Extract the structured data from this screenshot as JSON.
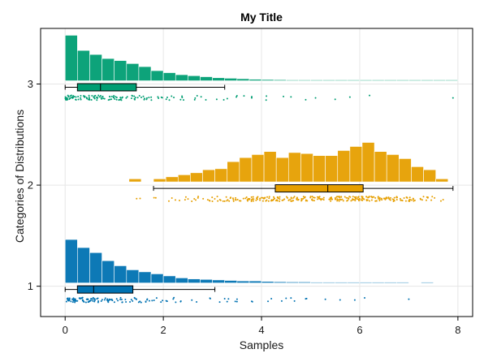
{
  "chart_data": {
    "type": "raincloud",
    "title": "My Title",
    "xlabel": "Samples",
    "ylabel": "Categories of Distributions",
    "xlim": [
      -0.5,
      8.3
    ],
    "ylim": [
      0.7,
      3.55
    ],
    "grid": true,
    "x_ticks": [
      {
        "value": 0,
        "label": "0"
      },
      {
        "value": 2,
        "label": "2"
      },
      {
        "value": 4,
        "label": "4"
      },
      {
        "value": 6,
        "label": "6"
      },
      {
        "value": 8,
        "label": "8"
      }
    ],
    "y_ticks": [
      {
        "value": 1,
        "label": "1"
      },
      {
        "value": 2,
        "label": "2"
      },
      {
        "value": 3,
        "label": "3"
      }
    ],
    "bin_width": 0.25,
    "series": [
      {
        "category": 1,
        "color": "#0072B2",
        "hist_start": 0,
        "hist_heights": [
          0.43,
          0.35,
          0.3,
          0.22,
          0.17,
          0.13,
          0.11,
          0.09,
          0.07,
          0.05,
          0.04,
          0.035,
          0.03,
          0.025,
          0.02,
          0.02,
          0.015,
          0.012,
          0.01,
          0.01,
          0.008,
          0.008,
          0.006,
          0.006,
          0.005,
          0.004,
          0.004,
          0.003,
          0,
          0.003
        ],
        "box": {
          "whisker_low": 0,
          "q1": 0.25,
          "median": 0.58,
          "q3": 1.38,
          "whisker_high": 3.05
        },
        "points_extra": [
          3.3,
          3.5,
          3.8,
          4.2,
          4.5,
          4.6,
          4.9,
          5.3,
          5.6,
          5.9,
          6.1,
          7.0
        ]
      },
      {
        "category": 2,
        "color": "#E69F00",
        "hist_start": 1.3,
        "hist_heights": [
          0.03,
          0,
          0.03,
          0.05,
          0.07,
          0.09,
          0.12,
          0.13,
          0.2,
          0.24,
          0.27,
          0.3,
          0.24,
          0.29,
          0.28,
          0.26,
          0.26,
          0.31,
          0.35,
          0.39,
          0.3,
          0.27,
          0.23,
          0.15,
          0.12,
          0.03
        ],
        "box": {
          "whisker_low": 1.8,
          "q1": 4.28,
          "median": 5.35,
          "q3": 6.07,
          "whisker_high": 7.9
        },
        "points_extra": []
      },
      {
        "category": 3,
        "color": "#009E73",
        "hist_start": 0,
        "hist_heights": [
          0.45,
          0.3,
          0.26,
          0.22,
          0.2,
          0.17,
          0.14,
          0.1,
          0.08,
          0.06,
          0.05,
          0.04,
          0.03,
          0.025,
          0.02,
          0.015,
          0.012,
          0.01,
          0.008,
          0.008,
          0.006,
          0.005,
          0.005,
          0.004,
          0.004,
          0.003,
          0.003,
          0.003,
          0.003,
          0.002,
          0.002,
          0.002
        ],
        "box": {
          "whisker_low": 0,
          "q1": 0.25,
          "median": 0.72,
          "q3": 1.45,
          "whisker_high": 3.25
        },
        "points_extra": [
          3.5,
          3.8,
          4.1,
          4.6,
          4.9,
          5.1,
          5.5,
          5.8,
          6.2,
          7.9
        ]
      }
    ]
  }
}
